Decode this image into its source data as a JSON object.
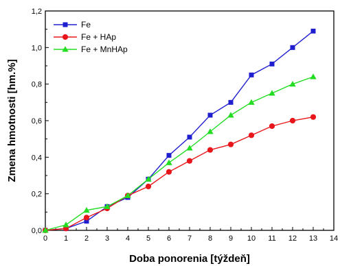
{
  "chart_data": {
    "type": "line",
    "title": "",
    "xlabel": "Doba ponorenia [týždeň]",
    "ylabel": "Zmena hmotnosti [hm.%]",
    "xlim": [
      0,
      14
    ],
    "ylim": [
      0,
      1.2
    ],
    "x_ticks": [
      0,
      1,
      2,
      3,
      4,
      5,
      6,
      7,
      8,
      9,
      10,
      11,
      12,
      13,
      14
    ],
    "y_ticks": [
      0,
      0.2,
      0.4,
      0.6,
      0.8,
      1.0,
      1.2
    ],
    "y_tick_labels": [
      "0,0",
      "0,2",
      "0,4",
      "0,6",
      "0,8",
      "1,0",
      "1,2"
    ],
    "grid": false,
    "legend_position": "top-left",
    "x": [
      0,
      1,
      2,
      3,
      4,
      5,
      6,
      7,
      8,
      9,
      10,
      11,
      12,
      13
    ],
    "series": [
      {
        "name": "Fe",
        "color": "#1f1fcf",
        "marker": "square",
        "values": [
          0.0,
          0.01,
          0.05,
          0.13,
          0.18,
          0.28,
          0.41,
          0.51,
          0.63,
          0.7,
          0.85,
          0.91,
          1.0,
          1.09
        ]
      },
      {
        "name": "Fe + HAp",
        "color": "#e8161b",
        "marker": "circle",
        "values": [
          0.0,
          0.01,
          0.07,
          0.12,
          0.19,
          0.24,
          0.32,
          0.38,
          0.44,
          0.47,
          0.52,
          0.57,
          0.6,
          0.62
        ]
      },
      {
        "name": "Fe + MnHAp",
        "color": "#22dd22",
        "marker": "triangle",
        "values": [
          0.0,
          0.03,
          0.11,
          0.13,
          0.19,
          0.28,
          0.37,
          0.45,
          0.54,
          0.63,
          0.7,
          0.75,
          0.8,
          0.84
        ]
      }
    ]
  }
}
